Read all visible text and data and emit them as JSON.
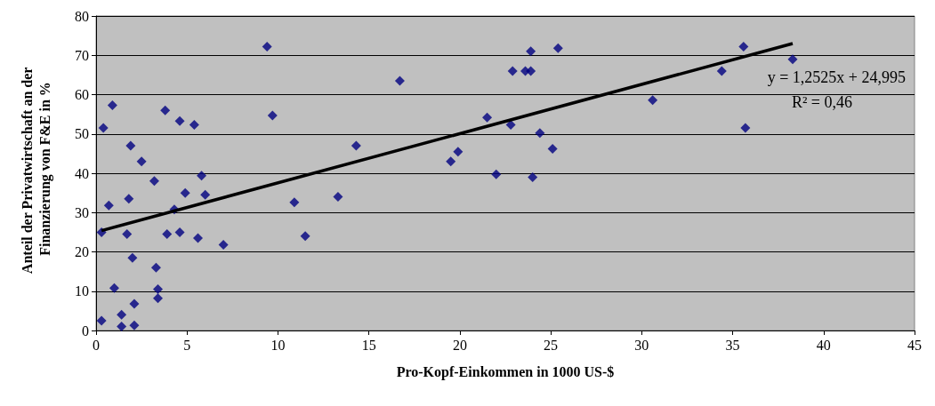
{
  "chart_data": {
    "type": "scatter",
    "xlabel": "Pro-Kopf-Einkommen in 1000 US-$",
    "ylabel": "Anteil der Privatwirtschaft an der Finanzierung von F&E in %",
    "xlim": [
      0,
      45
    ],
    "xticks": [
      0,
      5,
      10,
      15,
      20,
      25,
      30,
      35,
      40,
      45
    ],
    "ylim": [
      0,
      80
    ],
    "yticks": [
      0,
      10,
      20,
      30,
      40,
      50,
      60,
      70,
      80
    ],
    "grid": "y",
    "marker": "diamond",
    "annotations": [
      "y = 1,2525x + 24,995",
      "R² = 0,46"
    ],
    "series": [
      {
        "color": "#000080",
        "x": [
          0.3,
          0.3,
          0.4,
          0.7,
          0.9,
          1.0,
          1.4,
          1.4,
          1.7,
          1.8,
          1.9,
          2.0,
          2.1,
          2.1,
          2.5,
          3.2,
          3.3,
          3.4,
          3.4,
          3.8,
          3.9,
          4.3,
          4.6,
          4.6,
          4.9,
          5.4,
          5.6,
          5.8,
          6.0,
          7.0,
          9.4,
          9.7,
          10.9,
          11.5,
          13.3,
          14.3,
          16.7,
          19.5,
          19.9,
          21.5,
          22.0,
          22.8,
          22.9,
          23.6,
          23.9,
          23.9,
          24.0,
          24.4,
          25.1,
          25.4,
          30.6,
          34.4,
          35.6,
          35.7,
          38.3
        ],
        "values": [
          2.5,
          25,
          51.5,
          31.8,
          57.3,
          10.8,
          4,
          1,
          24.5,
          33.5,
          47,
          18.5,
          6.8,
          1.3,
          43,
          38,
          16,
          10.5,
          8.2,
          56,
          24.5,
          30.8,
          53.3,
          25,
          35,
          52.3,
          23.5,
          39.4,
          34.5,
          21.8,
          72.2,
          54.7,
          32.6,
          24,
          34,
          47,
          63.5,
          43,
          45.5,
          54.2,
          39.7,
          52.3,
          66,
          66,
          71,
          66,
          39,
          50.2,
          46.2,
          71.8,
          58.6,
          66,
          72.2,
          51.5,
          69
        ]
      },
      {
        "type": "line",
        "marker": "none",
        "color": "#000000",
        "x": [
          0.3,
          38.3
        ],
        "values": [
          25.4,
          73.0
        ]
      }
    ]
  }
}
